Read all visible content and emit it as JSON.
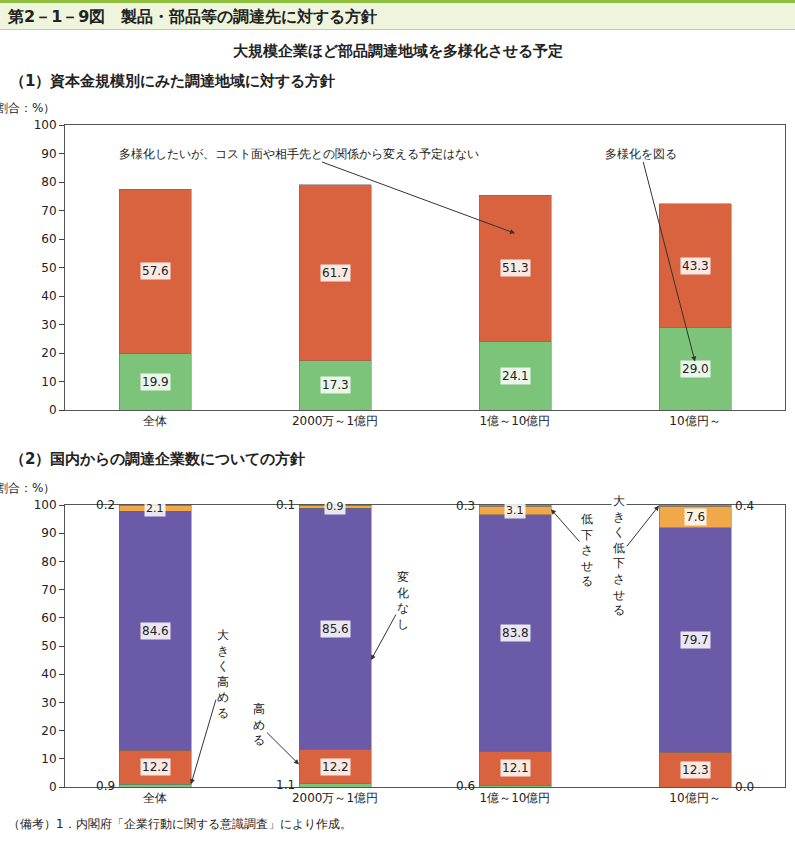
{
  "title": "第2－1－9図　製品・部品等の調達先に対する方針",
  "subtitle": "大規模企業ほど部品調達地域を多様化させる予定",
  "note": "（備考）1．内閣府「企業行動に関する意識調査」により作成。",
  "chart_data": [
    {
      "type": "bar",
      "title": "（1）資本金規模別にみた調達地域に対する方針",
      "ylabel": "（割合：%）",
      "categories": [
        "全体",
        "2000万～1億円",
        "1億～10億円",
        "10億円～"
      ],
      "series": [
        {
          "name": "多様化を図る",
          "color": "#7cc47a",
          "values": [
            19.9,
            17.3,
            24.1,
            29.0
          ],
          "value_labels": [
            "19.9",
            "17.3",
            "24.1",
            "29.0"
          ]
        },
        {
          "name": "多様化したいが、コスト面や相手先との関係から変える予定はない",
          "color": "#d9633f",
          "values": [
            57.6,
            61.7,
            51.3,
            43.3
          ],
          "value_labels": [
            "57.6",
            "61.7",
            "51.3",
            "43.3"
          ]
        }
      ],
      "stacked": true,
      "data_labels": true,
      "grid": false,
      "ylim": [
        0,
        100
      ],
      "yticks": [
        0,
        10,
        20,
        30,
        40,
        50,
        60,
        70,
        80,
        90,
        100
      ]
    },
    {
      "type": "bar",
      "title": "（2）国内からの調達企業数についての方針",
      "ylabel": "（割合：%）",
      "categories": [
        "全体",
        "2000万～1億円",
        "1億～10億円",
        "10億円～"
      ],
      "series": [
        {
          "name": "大きく高める",
          "color": "#7cc47a",
          "values": [
            0.9,
            1.1,
            0.6,
            0.0
          ],
          "value_labels": [
            "0.9",
            "1.1",
            "0.6",
            "0.0"
          ]
        },
        {
          "name": "高める",
          "color": "#d9633f",
          "values": [
            12.2,
            12.2,
            12.1,
            12.3
          ],
          "value_labels": [
            "12.2",
            "12.2",
            "12.1",
            "12.3"
          ]
        },
        {
          "name": "変化なし",
          "color": "#6a5aa8",
          "values": [
            84.6,
            85.6,
            83.8,
            79.7
          ],
          "value_labels": [
            "84.6",
            "85.6",
            "83.8",
            "79.7"
          ]
        },
        {
          "name": "低下させる",
          "color": "#f0a848",
          "values": [
            2.1,
            0.9,
            3.1,
            7.6
          ],
          "value_labels": [
            "2.1",
            "0.9",
            "3.1",
            "7.6"
          ]
        },
        {
          "name": "大きく低下させる",
          "color": "#b0b0b0",
          "values": [
            0.2,
            0.1,
            0.3,
            0.4
          ],
          "value_labels": [
            "0.2",
            "0.1",
            "0.3",
            "0.4"
          ]
        }
      ],
      "stacked": true,
      "data_labels": true,
      "grid": false,
      "ylim": [
        0,
        100
      ],
      "yticks": [
        0,
        10,
        20,
        30,
        40,
        50,
        60,
        70,
        80,
        90,
        100
      ]
    }
  ]
}
